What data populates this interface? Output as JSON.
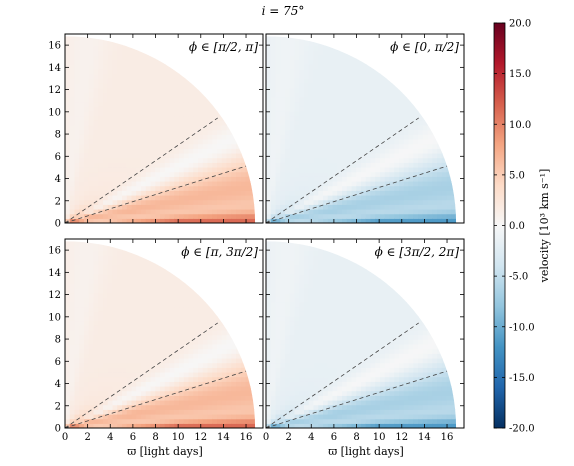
{
  "chart_data": {
    "type": "heatmap",
    "title": "i = 75°",
    "xlabel": "ϖ [light days]",
    "xlim": [
      0,
      17.5
    ],
    "ylim": [
      0,
      17
    ],
    "x_ticks": [
      "0",
      "2",
      "4",
      "6",
      "8",
      "10",
      "12",
      "14",
      "16"
    ],
    "y_ticks": [
      "0",
      "2",
      "4",
      "6",
      "8",
      "10",
      "12",
      "14",
      "16"
    ],
    "outer_radius": 16.8,
    "dashed_line_slopes": [
      0.7,
      0.32
    ],
    "panels": [
      {
        "label": "ϕ ∈ [π/2, π]",
        "sign": 1
      },
      {
        "label": "ϕ ∈ [0, π/2]",
        "sign": -1
      },
      {
        "label": "ϕ ∈ [π, 3π/2]",
        "sign": 1
      },
      {
        "label": "ϕ ∈ [3π/2, 2π]",
        "sign": -1
      }
    ],
    "colorbar": {
      "label": "velocity [10³ km s⁻¹]",
      "min": -20,
      "max": 20,
      "ticks": [
        "20.0",
        "15.0",
        "10.0",
        "5.0",
        "0.0",
        "-5.0",
        "-10.0",
        "-15.0",
        "-20.0"
      ],
      "colormap": [
        "#053061",
        "#2166ac",
        "#4393c3",
        "#92c5de",
        "#d1e5f0",
        "#f7f7f7",
        "#fddbc7",
        "#f4a582",
        "#d6604d",
        "#b2182b",
        "#67001f"
      ]
    }
  }
}
